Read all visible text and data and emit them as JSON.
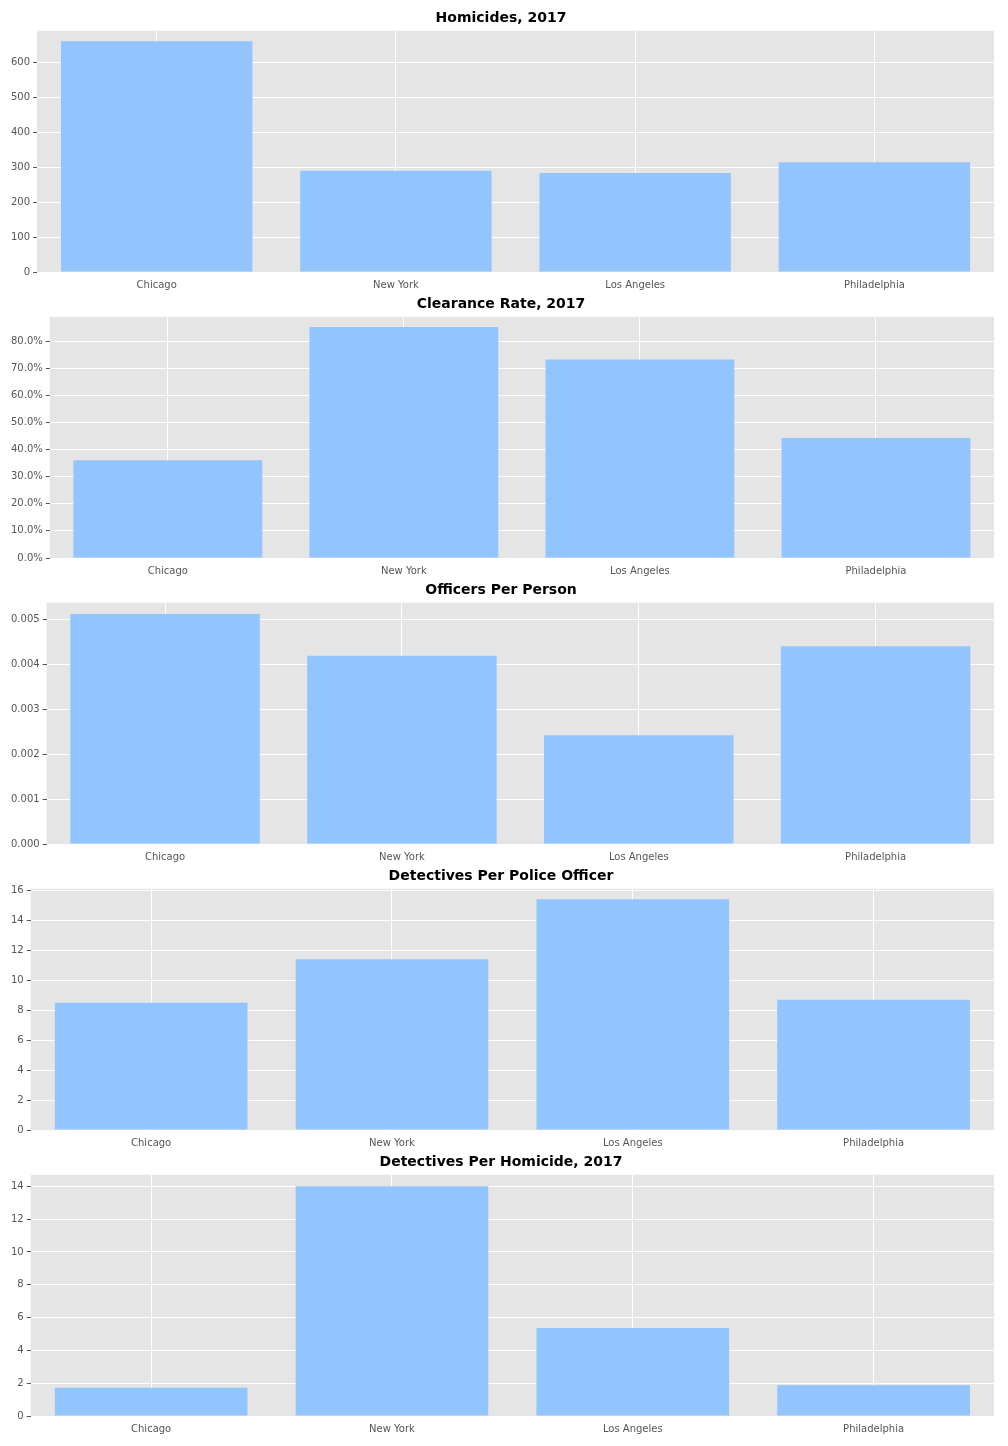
{
  "chart_data": [
    {
      "type": "bar",
      "title": "Homicides, 2017",
      "categories": [
        "Chicago",
        "New York",
        "Los Angeles",
        "Philadelphia"
      ],
      "values": [
        660,
        290,
        283,
        314
      ],
      "color": "#92c5fd",
      "ylim": [
        0,
        690
      ],
      "yticks": [
        0,
        100,
        200,
        300,
        400,
        500,
        600
      ],
      "grid": true
    },
    {
      "type": "bar",
      "title": "Clearance Rate, 2017",
      "categories": [
        "Chicago",
        "New York",
        "Los Angeles",
        "Philadelphia"
      ],
      "values": [
        36.1,
        85.2,
        73.2,
        44.3
      ],
      "color": "#92c5fd",
      "ylim": [
        0,
        89
      ],
      "yticks": [
        {
          "value": 0,
          "label": "0.0%"
        },
        {
          "value": 10,
          "label": "10.0%"
        },
        {
          "value": 20,
          "label": "20.0%"
        },
        {
          "value": 30,
          "label": "30.0%"
        },
        {
          "value": 40,
          "label": "40.0%"
        },
        {
          "value": 50,
          "label": "50.0%"
        },
        {
          "value": 60,
          "label": "60.0%"
        },
        {
          "value": 70,
          "label": "70.0%"
        },
        {
          "value": 80,
          "label": "80.0%"
        }
      ],
      "grid": true
    },
    {
      "type": "bar",
      "title": "Officers Per Person",
      "categories": [
        "Chicago",
        "New York",
        "Los Angeles",
        "Philadelphia"
      ],
      "values": [
        0.00512,
        0.00419,
        0.00242,
        0.0044
      ],
      "color": "#92c5fd",
      "ylim": [
        0,
        0.00537
      ],
      "yticks": [
        {
          "value": 0,
          "label": "0.000"
        },
        {
          "value": 0.001,
          "label": "0.001"
        },
        {
          "value": 0.002,
          "label": "0.002"
        },
        {
          "value": 0.003,
          "label": "0.003"
        },
        {
          "value": 0.004,
          "label": "0.004"
        },
        {
          "value": 0.005,
          "label": "0.005"
        }
      ],
      "grid": true
    },
    {
      "type": "bar",
      "title": "Detectives Per Police Officer",
      "categories": [
        "Chicago",
        "New York",
        "Los Angeles",
        "Philadelphia"
      ],
      "values": [
        8.5,
        11.4,
        15.4,
        8.7
      ],
      "color": "#92c5fd",
      "ylim": [
        0,
        16.1
      ],
      "yticks": [
        0,
        2,
        4,
        6,
        8,
        10,
        12,
        14,
        16
      ],
      "grid": true
    },
    {
      "type": "bar",
      "title": "Detectives Per Homicide, 2017",
      "categories": [
        "Chicago",
        "New York",
        "Los Angeles",
        "Philadelphia"
      ],
      "values": [
        1.72,
        14.0,
        5.36,
        1.87
      ],
      "color": "#92c5fd",
      "ylim": [
        0,
        14.7
      ],
      "yticks": [
        0,
        2,
        4,
        6,
        8,
        10,
        12,
        14
      ],
      "grid": true
    }
  ]
}
